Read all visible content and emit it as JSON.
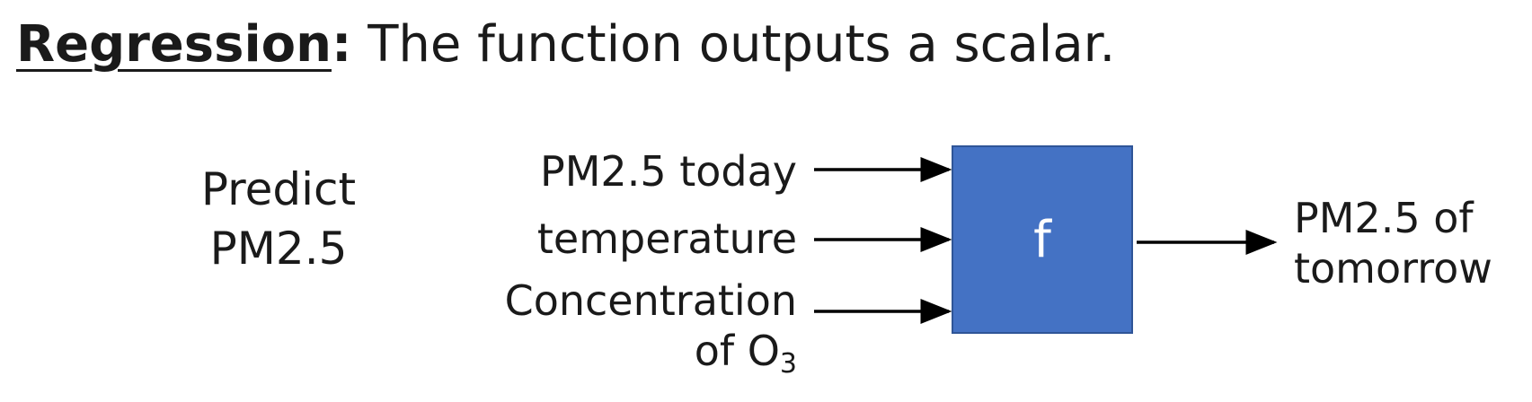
{
  "heading": {
    "term": "Regression",
    "colon": ":",
    "rest": " The function outputs a scalar."
  },
  "task": {
    "line1": "Predict",
    "line2": "PM2.5"
  },
  "inputs": [
    {
      "label": "PM2.5 today"
    },
    {
      "label": "temperature"
    },
    {
      "label_line1": "Concentration",
      "label_line2_prefix": "of O",
      "label_line2_sub": "3"
    }
  ],
  "function_box": {
    "label": "f",
    "color": "#4472c4"
  },
  "output": {
    "line1": "PM2.5 of",
    "line2": "tomorrow"
  }
}
